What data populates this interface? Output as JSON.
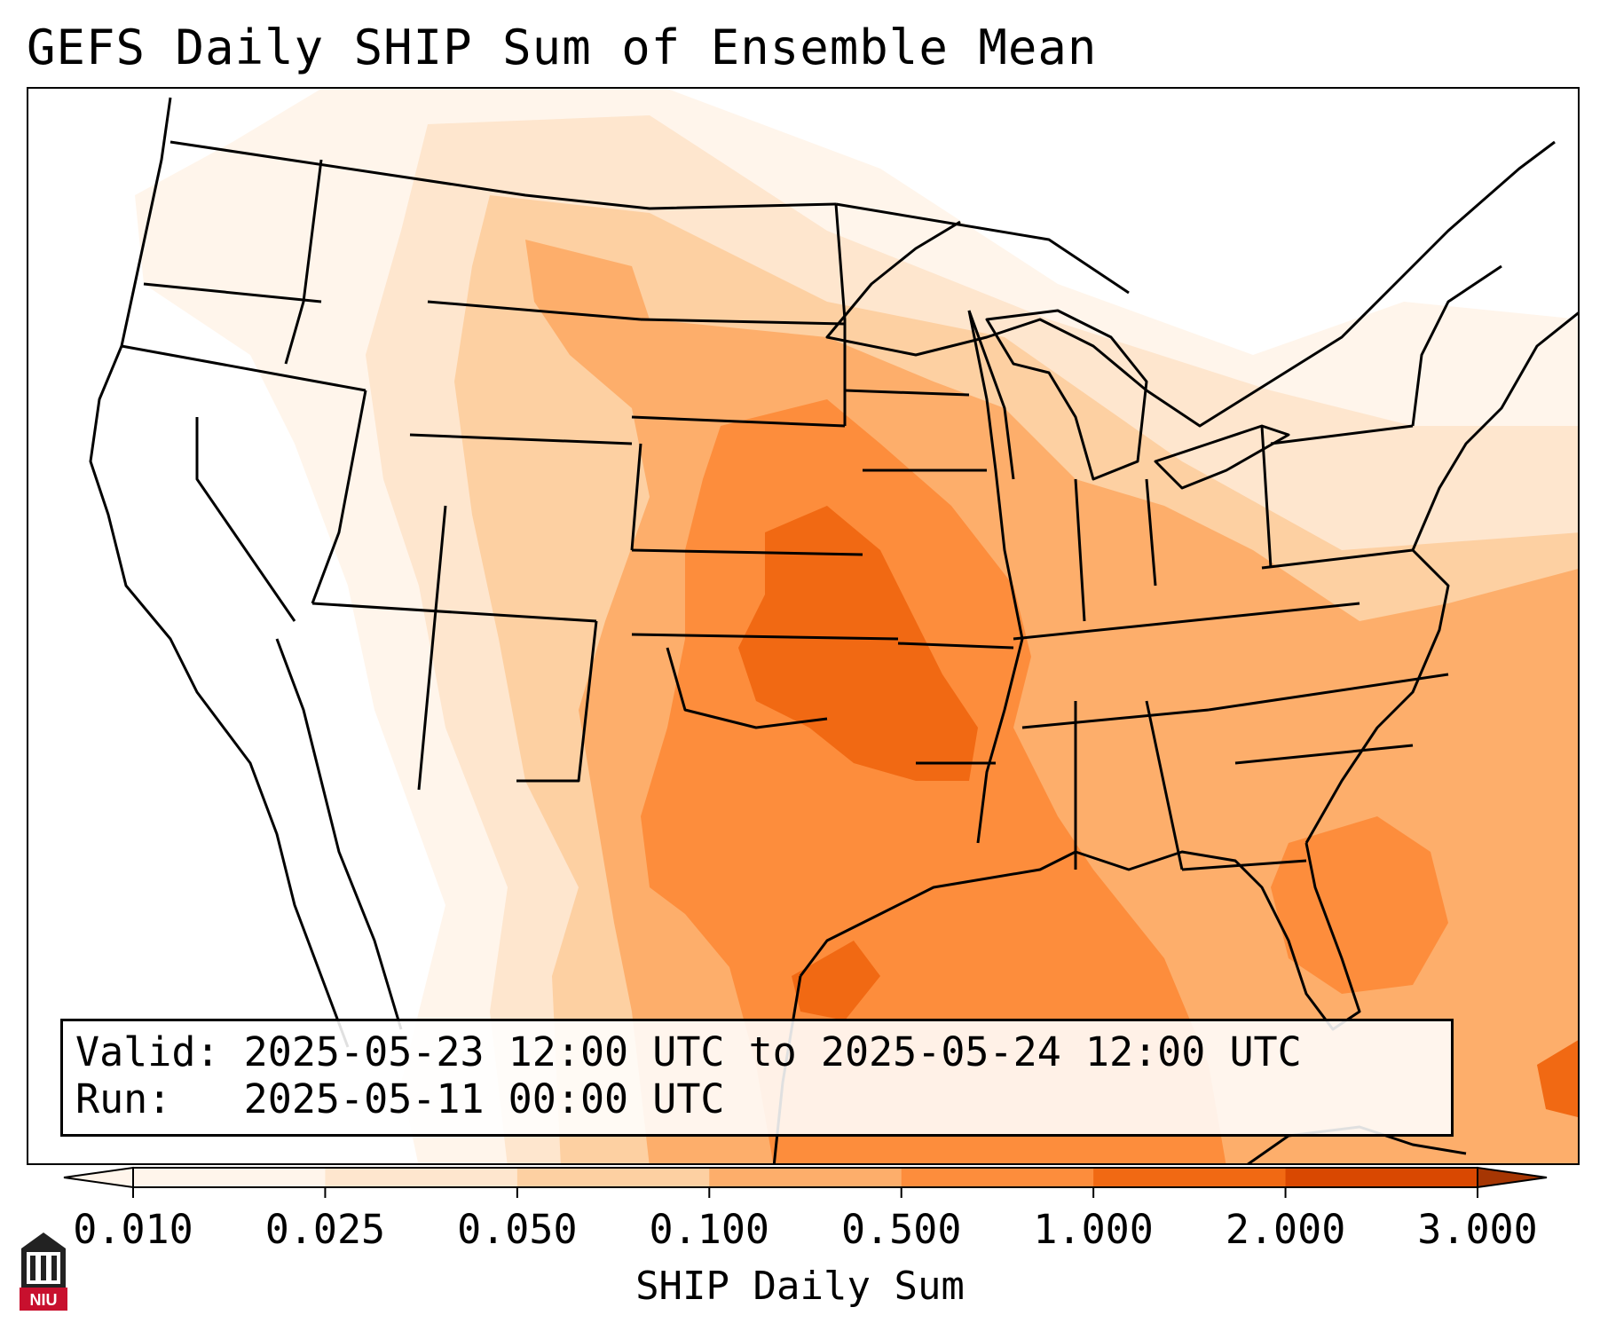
{
  "title": "GEFS Daily SHIP Sum of Ensemble Mean",
  "info": {
    "valid_label": "Valid:",
    "valid_value": "2025-05-23 12:00 UTC to 2025-05-24 12:00 UTC",
    "run_label": "Run:",
    "run_value": "2025-05-11 00:00 UTC"
  },
  "colorbar": {
    "title": "SHIP Daily Sum",
    "levels": [
      "0.010",
      "0.025",
      "0.050",
      "0.100",
      "0.500",
      "1.000",
      "2.000",
      "3.000"
    ],
    "colors": [
      "#fff5eb",
      "#fee6ce",
      "#fdd0a2",
      "#fdae6b",
      "#fd8d3c",
      "#f16913",
      "#d94801",
      "#a63603"
    ],
    "extend": "both"
  },
  "map": {
    "region": "Continental United States",
    "projection": "Lambert Conformal",
    "boundaries": [
      "coastlines",
      "country borders",
      "state borders"
    ],
    "max_region": "Oklahoma / Arkansas / Kansas / Missouri"
  },
  "logo": {
    "icon": "niu-logo-icon",
    "text": "NIU",
    "color": "#c8102e"
  }
}
